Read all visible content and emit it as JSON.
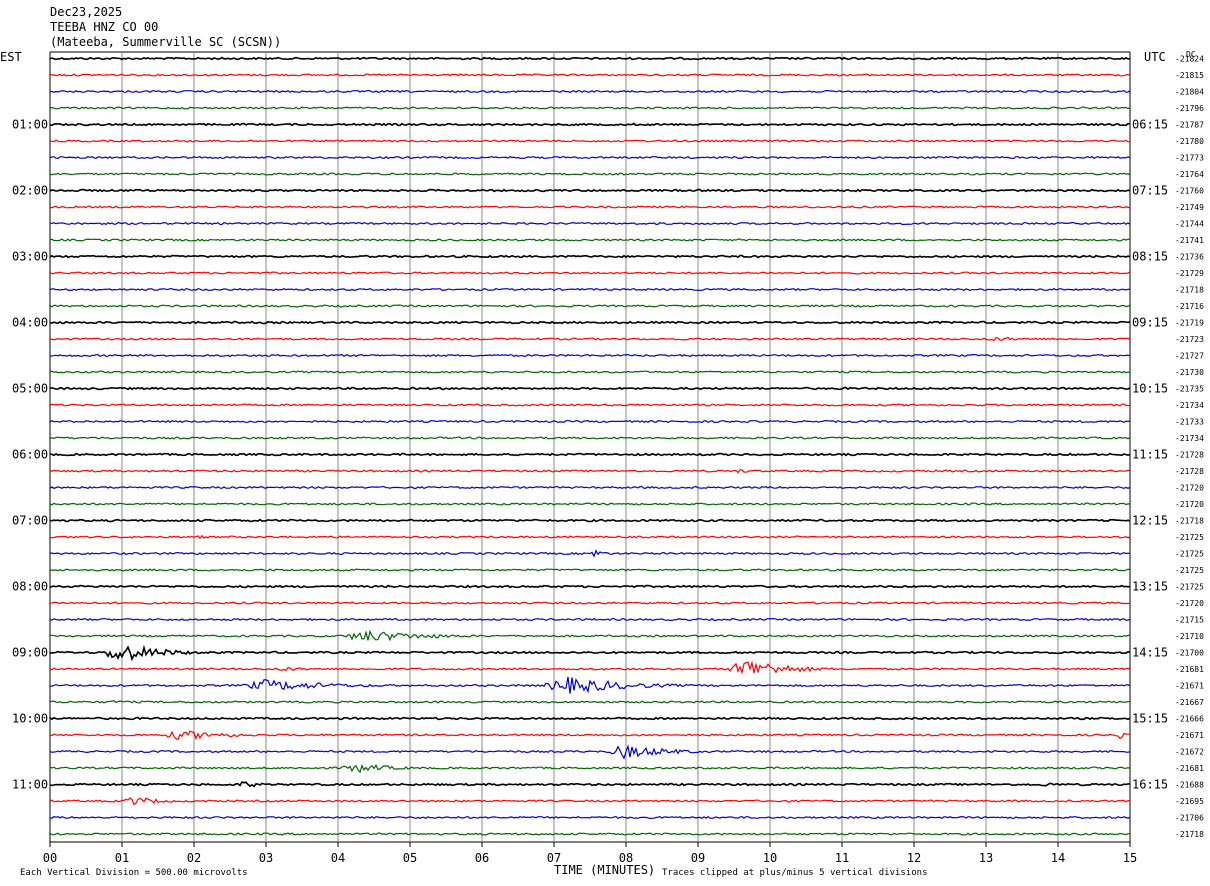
{
  "header": {
    "date": "Dec23,2025",
    "station": "TEEBA HNZ CO 00",
    "location": "(Mateeba, Summerville SC (SCSN))"
  },
  "left_zone_label": "EST",
  "right_zone_label": "UTC",
  "dc_label": "DC",
  "footer": {
    "scale_note": "Each Vertical Division =  500.00 microvolts",
    "xaxis_title": "TIME (MINUTES)",
    "clip_note": "Traces clipped at plus/minus 5 vertical divisions"
  },
  "colors": {
    "cycle": [
      "#000000",
      "#ff0000",
      "#0000cc",
      "#006600"
    ],
    "grid": "#888888"
  },
  "chart_data": {
    "type": "line",
    "title": "TEEBA HNZ CO 00",
    "xlabel": "TIME (MINUTES)",
    "xlim": [
      0,
      15
    ],
    "x_ticks": [
      "00",
      "01",
      "02",
      "03",
      "04",
      "05",
      "06",
      "07",
      "08",
      "09",
      "10",
      "11",
      "12",
      "13",
      "14",
      "15"
    ],
    "grid": true,
    "est_hour_labels": [
      "01:00",
      "02:00",
      "03:00",
      "04:00",
      "05:00",
      "06:00",
      "07:00",
      "08:00",
      "09:00",
      "10:00",
      "11:00"
    ],
    "utc_hour_labels": [
      "06:15",
      "07:15",
      "08:15",
      "09:15",
      "10:15",
      "11:15",
      "12:15",
      "13:15",
      "14:15",
      "15:15",
      "16:15"
    ],
    "dc_offsets": [
      -21824,
      -21815,
      -21804,
      -21796,
      -21787,
      -21780,
      -21773,
      -21764,
      -21760,
      -21749,
      -21744,
      -21741,
      -21736,
      -21729,
      -21718,
      -21716,
      -21719,
      -21723,
      -21727,
      -21730,
      -21735,
      -21734,
      -21733,
      -21734,
      -21728,
      -21728,
      -21720,
      -21720,
      -21718,
      -21725,
      -21725,
      -21725,
      -21725,
      -21720,
      -21715,
      -21710,
      -21700,
      -21681,
      -21671,
      -21667,
      -21666,
      -21671,
      -21672,
      -21681,
      -21688,
      -21695,
      -21706,
      -21718
    ],
    "events": [
      {
        "trace": 17,
        "start": 12.8,
        "end": 15.0,
        "amplitude": 2
      },
      {
        "trace": 19,
        "start": 4.0,
        "end": 5.5,
        "amplitude": 1.5
      },
      {
        "trace": 25,
        "start": 9.5,
        "end": 10.0,
        "amplitude": 2.5
      },
      {
        "trace": 25,
        "start": 12.0,
        "end": 12.6,
        "amplitude": 1.5
      },
      {
        "trace": 29,
        "start": 2.0,
        "end": 2.4,
        "amplitude": 2
      },
      {
        "trace": 30,
        "start": 7.5,
        "end": 7.9,
        "amplitude": 5
      },
      {
        "trace": 35,
        "start": 4.0,
        "end": 6.5,
        "amplitude": 6
      },
      {
        "trace": 36,
        "start": 0.7,
        "end": 2.3,
        "amplitude": 10
      },
      {
        "trace": 37,
        "start": 3.0,
        "end": 4.5,
        "amplitude": 2
      },
      {
        "trace": 37,
        "start": 9.4,
        "end": 11.0,
        "amplitude": 11
      },
      {
        "trace": 38,
        "start": 2.6,
        "end": 5.2,
        "amplitude": 6
      },
      {
        "trace": 38,
        "start": 6.8,
        "end": 9.2,
        "amplitude": 9
      },
      {
        "trace": 39,
        "start": 0.8,
        "end": 1.5,
        "amplitude": 2
      },
      {
        "trace": 41,
        "start": 1.5,
        "end": 3.5,
        "amplitude": 5
      },
      {
        "trace": 41,
        "start": 14.8,
        "end": 15.0,
        "amplitude": 6
      },
      {
        "trace": 42,
        "start": 7.7,
        "end": 9.5,
        "amplitude": 7
      },
      {
        "trace": 43,
        "start": 4.0,
        "end": 5.5,
        "amplitude": 5
      },
      {
        "trace": 44,
        "start": 2.6,
        "end": 3.2,
        "amplitude": 4
      },
      {
        "trace": 44,
        "start": 13.7,
        "end": 14.5,
        "amplitude": 2
      },
      {
        "trace": 45,
        "start": 1.0,
        "end": 2.0,
        "amplitude": 5
      }
    ]
  }
}
